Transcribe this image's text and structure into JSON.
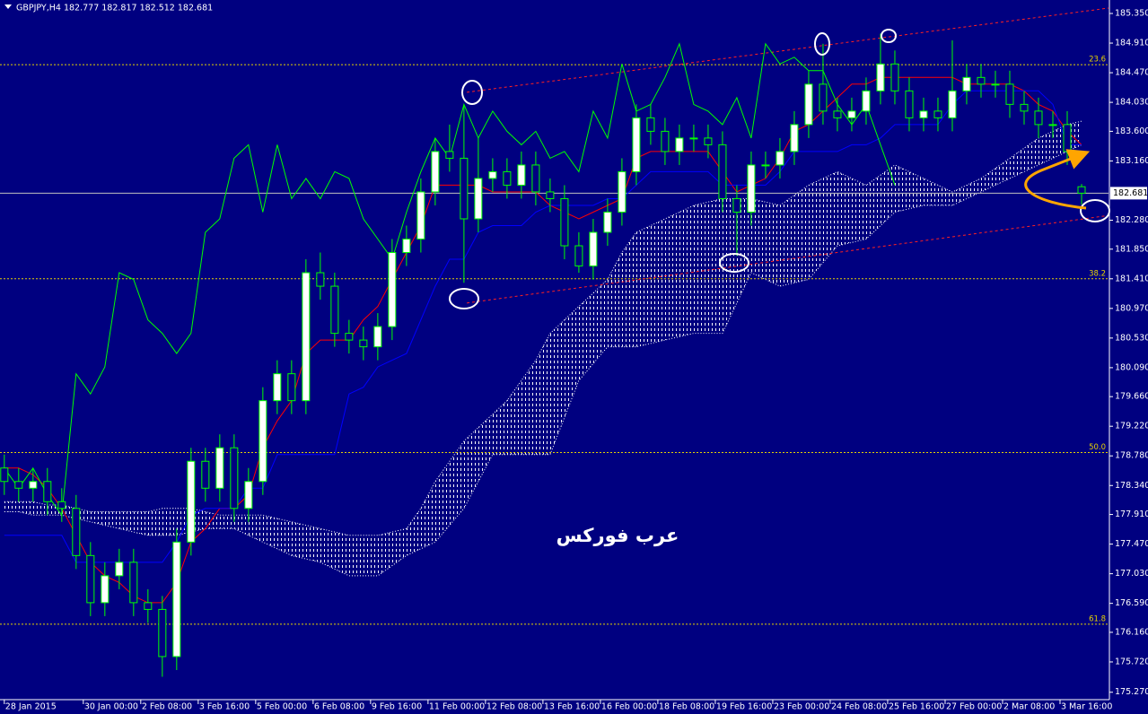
{
  "chart_data": {
    "type": "candlestick",
    "header": "GBPJPY,H4  182.777 182.817 182.512 182.681",
    "watermark": "عرب فوركس",
    "x": [
      0,
      2,
      4,
      6,
      8,
      10,
      12,
      14,
      16,
      18,
      20,
      22,
      24,
      26,
      28,
      30,
      32,
      34,
      36,
      38,
      40,
      42,
      44,
      46,
      48,
      50,
      52,
      54,
      56,
      58,
      60,
      62,
      64,
      66,
      68,
      70,
      72,
      74,
      76,
      78,
      80,
      82,
      84,
      86,
      88,
      90,
      92,
      94,
      96,
      98,
      100,
      102,
      104,
      106,
      108,
      110,
      112,
      114,
      116,
      118,
      120,
      122,
      124,
      126,
      128,
      130,
      132,
      134,
      136,
      138,
      140,
      142,
      144,
      146,
      148,
      150
    ],
    "open": [
      178.6,
      178.4,
      178.3,
      178.4,
      178.1,
      178.0,
      177.3,
      176.6,
      177.0,
      177.2,
      176.6,
      176.5,
      175.8,
      177.5,
      178.7,
      178.3,
      178.9,
      178.0,
      178.4,
      179.6,
      180.0,
      179.6,
      181.5,
      181.3,
      180.6,
      180.5,
      180.4,
      180.7,
      181.8,
      182.0,
      182.7,
      183.3,
      183.2,
      182.3,
      182.9,
      183.0,
      182.8,
      183.1,
      182.7,
      182.6,
      181.9,
      181.6,
      182.1,
      182.4,
      183.0,
      183.8,
      183.6,
      183.3,
      183.5,
      183.5,
      183.4,
      182.6,
      182.4,
      183.1,
      183.1,
      183.3,
      183.7,
      184.3,
      183.9,
      183.8,
      183.9,
      184.2,
      184.6,
      184.2,
      183.8,
      183.9,
      183.8,
      184.2,
      184.4,
      184.3,
      184.3,
      184.0,
      183.9,
      183.7,
      183.7,
      182.777
    ],
    "high": [
      178.8,
      178.6,
      178.6,
      178.6,
      178.3,
      178.2,
      177.5,
      177.2,
      177.4,
      177.4,
      176.8,
      176.7,
      177.7,
      178.9,
      178.9,
      179.1,
      179.1,
      178.6,
      179.8,
      180.2,
      180.2,
      181.7,
      181.8,
      181.5,
      180.8,
      180.7,
      180.9,
      182.0,
      182.2,
      182.9,
      183.5,
      183.7,
      184.0,
      183.5,
      183.2,
      183.2,
      183.3,
      183.3,
      182.9,
      182.8,
      182.1,
      182.3,
      182.6,
      183.2,
      184.0,
      184.0,
      183.8,
      183.7,
      183.7,
      183.7,
      183.6,
      182.8,
      183.3,
      183.3,
      183.5,
      183.9,
      184.5,
      184.9,
      184.1,
      184.1,
      184.4,
      185.05,
      184.8,
      184.4,
      184.1,
      184.1,
      184.95,
      184.6,
      184.6,
      184.5,
      184.5,
      184.2,
      184.1,
      183.9,
      183.9,
      182.817
    ],
    "low": [
      178.2,
      178.1,
      178.1,
      177.9,
      177.8,
      177.1,
      176.4,
      176.4,
      176.8,
      176.4,
      176.3,
      175.5,
      175.6,
      177.3,
      178.1,
      178.1,
      177.8,
      177.8,
      178.2,
      179.4,
      179.4,
      179.4,
      181.1,
      180.4,
      180.3,
      180.2,
      180.2,
      180.5,
      181.6,
      181.8,
      182.5,
      183.0,
      181.35,
      182.1,
      182.7,
      182.6,
      182.6,
      182.5,
      182.4,
      181.7,
      181.5,
      181.4,
      181.9,
      182.2,
      182.8,
      183.4,
      183.1,
      183.1,
      183.3,
      183.2,
      182.4,
      181.75,
      182.2,
      182.9,
      182.9,
      183.1,
      183.5,
      183.7,
      183.6,
      183.6,
      183.7,
      184.0,
      184.0,
      183.6,
      183.6,
      183.6,
      183.6,
      184.0,
      184.1,
      184.1,
      183.8,
      183.7,
      183.5,
      183.5,
      183.1,
      182.512
    ],
    "close": [
      178.4,
      178.3,
      178.4,
      178.1,
      178.0,
      177.3,
      176.6,
      177.0,
      177.2,
      176.6,
      176.5,
      175.8,
      177.5,
      178.7,
      178.3,
      178.9,
      178.0,
      178.4,
      179.6,
      180.0,
      179.6,
      181.5,
      181.3,
      180.6,
      180.5,
      180.4,
      180.7,
      181.8,
      182.0,
      182.7,
      183.3,
      183.2,
      182.3,
      182.9,
      183.0,
      182.8,
      183.1,
      182.7,
      182.6,
      181.9,
      181.6,
      182.1,
      182.4,
      183.0,
      183.8,
      183.6,
      183.3,
      183.5,
      183.5,
      183.4,
      182.6,
      182.4,
      183.1,
      183.1,
      183.3,
      183.7,
      184.3,
      183.9,
      183.8,
      183.9,
      184.2,
      184.6,
      184.2,
      183.8,
      183.9,
      183.8,
      184.2,
      184.4,
      184.3,
      184.3,
      184.0,
      183.9,
      183.7,
      183.7,
      183.3,
      182.681
    ],
    "colors": {
      "bull": "#ffffff",
      "bear": "#000080",
      "wick": "#00ff00"
    },
    "lines": [
      {
        "color": "#ff0000",
        "values": [
          178.6,
          178.6,
          178.5,
          178.3,
          178.0,
          177.6,
          177.2,
          177.0,
          176.9,
          176.7,
          176.6,
          176.6,
          176.9,
          177.5,
          177.7,
          178.0,
          178.0,
          178.2,
          178.9,
          179.3,
          179.6,
          180.3,
          180.5,
          180.5,
          180.5,
          180.8,
          181.0,
          181.4,
          181.8,
          182.2,
          182.8,
          182.8,
          182.8,
          182.8,
          182.7,
          182.7,
          182.7,
          182.7,
          182.5,
          182.4,
          182.3,
          182.4,
          182.5,
          182.6,
          183.2,
          183.3,
          183.3,
          183.3,
          183.3,
          183.3,
          183.0,
          182.7,
          182.8,
          182.9,
          183.2,
          183.6,
          183.7,
          183.9,
          184.1,
          184.3,
          184.3,
          184.4,
          184.4,
          184.4,
          184.4,
          184.4,
          184.4,
          184.3,
          184.3,
          184.3,
          184.3,
          184.2,
          184.0,
          183.9,
          183.6,
          183.4
        ]
      },
      {
        "color": "#0000ff",
        "values": [
          177.6,
          177.6,
          177.6,
          177.6,
          177.6,
          177.2,
          177.2,
          177.2,
          177.2,
          177.2,
          177.2,
          177.2,
          177.5,
          177.9,
          178.0,
          178.0,
          178.0,
          178.3,
          178.3,
          178.8,
          178.8,
          178.8,
          178.8,
          178.8,
          179.7,
          179.8,
          180.1,
          180.2,
          180.3,
          180.8,
          181.3,
          181.7,
          181.7,
          182.1,
          182.2,
          182.2,
          182.2,
          182.4,
          182.5,
          182.5,
          182.5,
          182.5,
          182.6,
          182.6,
          182.8,
          183.0,
          183.0,
          183.0,
          183.0,
          183.0,
          182.8,
          182.8,
          182.8,
          182.8,
          183.0,
          183.3,
          183.3,
          183.3,
          183.3,
          183.4,
          183.4,
          183.5,
          183.7,
          183.7,
          183.7,
          183.7,
          184.0,
          184.2,
          184.2,
          184.2,
          184.2,
          184.2,
          184.2,
          184.0,
          183.4,
          183.4
        ]
      },
      {
        "color": "#00ff00",
        "values": [
          178.6,
          178.3,
          178.6,
          178.2,
          177.9,
          180.0,
          179.7,
          180.1,
          181.5,
          181.4,
          180.8,
          180.6,
          180.3,
          180.6,
          182.1,
          182.3,
          183.2,
          183.4,
          182.4,
          183.4,
          182.6,
          182.9,
          182.6,
          183.0,
          182.9,
          182.3,
          182.0,
          181.7,
          182.4,
          183.0,
          183.5,
          183.2,
          184.0,
          183.5,
          183.9,
          183.6,
          183.4,
          183.6,
          183.2,
          183.3,
          183.0,
          183.9,
          183.5,
          184.6,
          183.9,
          184.0,
          184.4,
          184.9,
          184.0,
          183.9,
          183.7,
          184.1,
          183.5,
          184.9,
          184.6,
          184.7,
          184.5,
          184.5,
          184.0,
          183.7,
          184.0,
          183.4,
          182.8,
          null,
          null,
          null,
          null,
          null,
          null,
          null,
          null,
          null,
          null,
          null,
          null,
          null
        ]
      }
    ],
    "cloud": {
      "color": "#ffffff",
      "span_a": [
        178.1,
        178.1,
        178.1,
        178.05,
        178.05,
        178.0,
        177.95,
        177.95,
        177.95,
        177.95,
        177.95,
        178.0,
        178.0,
        178.0,
        177.95,
        177.9,
        177.9,
        177.9,
        177.9,
        177.85,
        177.8,
        177.75,
        177.7,
        177.65,
        177.6,
        177.6,
        177.6,
        177.65,
        177.7,
        178.0,
        178.4,
        178.7,
        179.0,
        179.2,
        179.4,
        179.6,
        179.9,
        180.2,
        180.6,
        180.8,
        181.0,
        181.2,
        181.4,
        181.8,
        182.1,
        182.2,
        182.3,
        182.4,
        182.5,
        182.55,
        182.6,
        182.6,
        182.6,
        182.55,
        182.5,
        182.65,
        182.8,
        182.9,
        183.0,
        182.9,
        182.8,
        182.95,
        183.1,
        183.0,
        182.9,
        182.8,
        182.7,
        182.8,
        182.9,
        183.05,
        183.2,
        183.35,
        183.5,
        183.6,
        183.7,
        183.75
      ],
      "span_b": [
        177.95,
        177.95,
        177.9,
        177.9,
        177.9,
        177.85,
        177.8,
        177.75,
        177.7,
        177.65,
        177.6,
        177.6,
        177.6,
        177.65,
        177.7,
        177.7,
        177.7,
        177.6,
        177.5,
        177.4,
        177.3,
        177.25,
        177.2,
        177.1,
        177.0,
        177.0,
        177.0,
        177.15,
        177.3,
        177.4,
        177.5,
        177.75,
        178.0,
        178.4,
        178.8,
        178.8,
        178.8,
        178.8,
        178.8,
        179.35,
        179.9,
        180.15,
        180.4,
        180.4,
        180.4,
        180.45,
        180.5,
        180.55,
        180.6,
        180.6,
        180.6,
        181.05,
        181.5,
        181.4,
        181.3,
        181.35,
        181.4,
        181.65,
        181.9,
        181.95,
        182.0,
        182.2,
        182.4,
        182.45,
        182.5,
        182.5,
        182.5,
        182.6,
        182.7,
        182.8,
        182.9,
        183.0,
        183.1,
        183.2,
        183.3,
        183.4
      ]
    },
    "levels": [
      {
        "value": 184.59,
        "label": "23.6"
      },
      {
        "value": 181.41,
        "label": "38.2"
      },
      {
        "value": 178.83,
        "label": "50.0"
      },
      {
        "value": 176.28,
        "label": "61.8"
      }
    ],
    "level_color": "#e6d200",
    "trendlines": [
      {
        "x": [
          64.4,
          153.75
        ],
        "y": [
          184.18,
          185.43
        ],
        "color": "#ff2020"
      },
      {
        "x": [
          64.4,
          153.75
        ],
        "y": [
          181.05,
          182.35
        ],
        "color": "#ff2020"
      }
    ],
    "current_price": 182.681,
    "grid": false,
    "xlim": [
      -0.6,
      153.75
    ],
    "ylim": [
      175.16,
      185.55
    ],
    "xticks": [
      {
        "value": 0,
        "label": "28 Jan 2015"
      },
      {
        "value": 11,
        "label": "30 Jan 00:00"
      },
      {
        "value": 19,
        "label": "2 Feb 08:00"
      },
      {
        "value": 27,
        "label": "3 Feb 16:00"
      },
      {
        "value": 35,
        "label": "5 Feb 00:00"
      },
      {
        "value": 43,
        "label": "6 Feb 08:00"
      },
      {
        "value": 51,
        "label": "9 Feb 16:00"
      },
      {
        "value": 59,
        "label": "11 Feb 00:00"
      },
      {
        "value": 67,
        "label": "12 Feb 08:00"
      },
      {
        "value": 75,
        "label": "13 Feb 16:00"
      },
      {
        "value": 83,
        "label": "16 Feb 00:00"
      },
      {
        "value": 91,
        "label": "18 Feb 08:00"
      },
      {
        "value": 99,
        "label": "19 Feb 16:00"
      },
      {
        "value": 107,
        "label": "23 Feb 00:00"
      },
      {
        "value": 115,
        "label": "24 Feb 08:00"
      },
      {
        "value": 123,
        "label": "25 Feb 16:00"
      },
      {
        "value": 131,
        "label": "27 Feb 00:00"
      },
      {
        "value": 139,
        "label": "2 Mar 08:00"
      },
      {
        "value": 147,
        "label": "3 Mar 16:00"
      }
    ],
    "yticks": [
      {
        "value": 185.35,
        "label": "185.350"
      },
      {
        "value": 184.91,
        "label": "184.910"
      },
      {
        "value": 184.47,
        "label": "184.470"
      },
      {
        "value": 184.03,
        "label": "184.030"
      },
      {
        "value": 183.6,
        "label": "183.600"
      },
      {
        "value": 183.16,
        "label": "183.160"
      },
      {
        "value": 182.28,
        "label": "182.280"
      },
      {
        "value": 181.85,
        "label": "181.850"
      },
      {
        "value": 181.41,
        "label": "181.410"
      },
      {
        "value": 180.97,
        "label": "180.970"
      },
      {
        "value": 180.53,
        "label": "180.530"
      },
      {
        "value": 180.09,
        "label": "180.090"
      },
      {
        "value": 179.66,
        "label": "179.660"
      },
      {
        "value": 179.22,
        "label": "179.220"
      },
      {
        "value": 178.78,
        "label": "178.780"
      },
      {
        "value": 178.34,
        "label": "178.340"
      },
      {
        "value": 177.91,
        "label": "177.910"
      },
      {
        "value": 177.47,
        "label": "177.470"
      },
      {
        "value": 177.03,
        "label": "177.030"
      },
      {
        "value": 176.59,
        "label": "176.590"
      },
      {
        "value": 176.16,
        "label": "176.160"
      },
      {
        "value": 175.72,
        "label": "175.720"
      },
      {
        "value": 175.27,
        "label": "175.270"
      }
    ]
  }
}
